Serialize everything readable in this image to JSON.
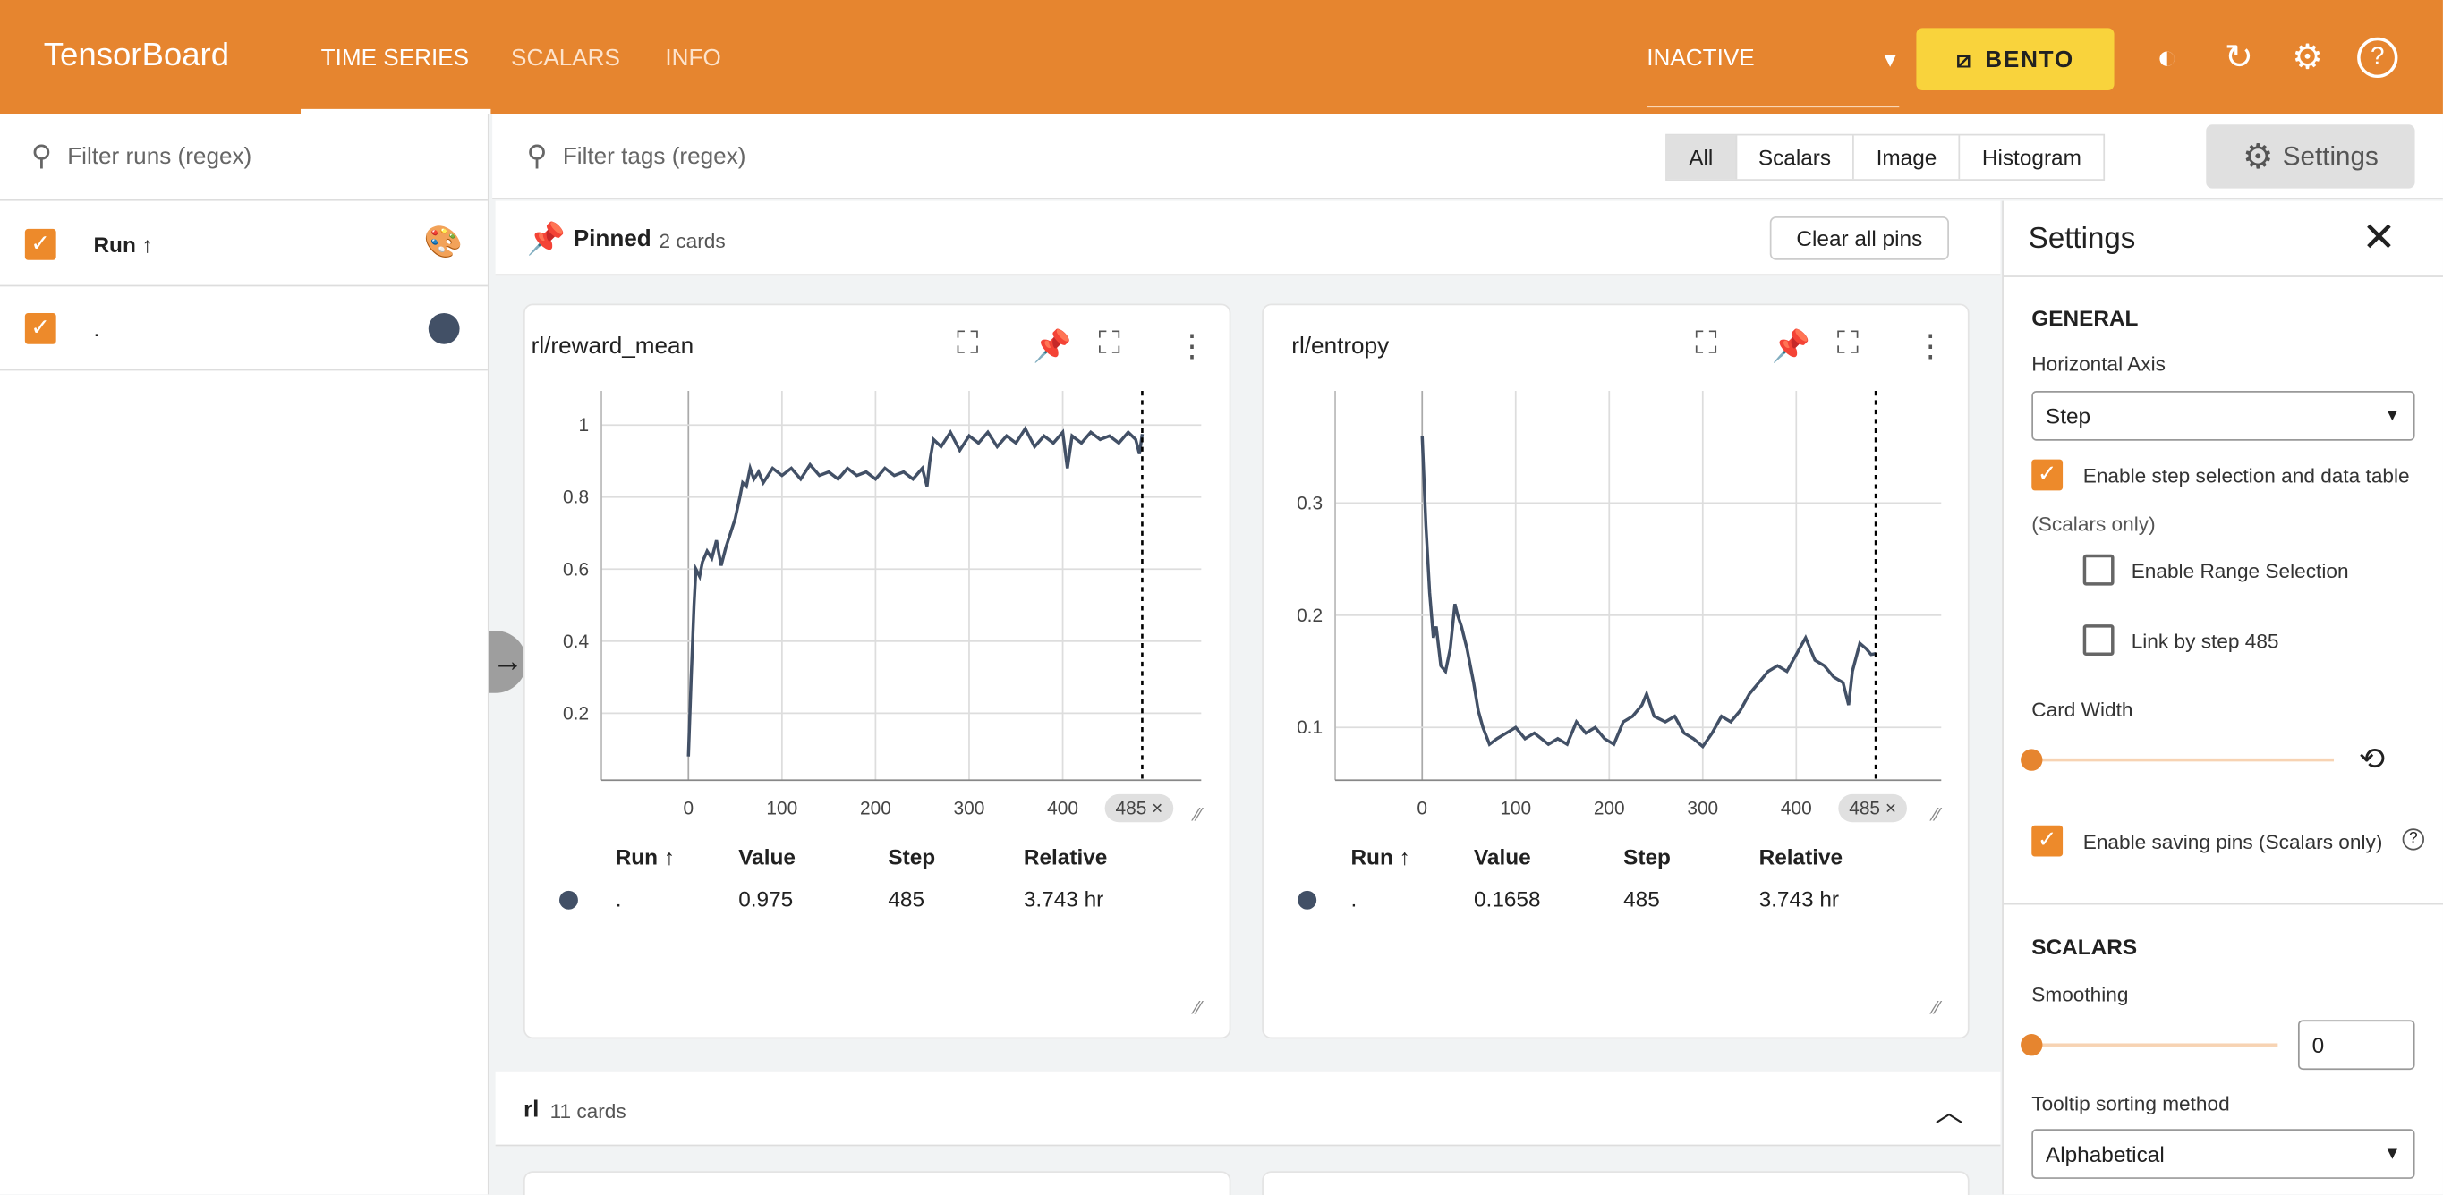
{
  "header": {
    "brand": "TensorBoard",
    "tabs": [
      "TIME SERIES",
      "SCALARS",
      "INFO"
    ],
    "status": "INACTIVE",
    "bento": "BENTO",
    "colors": {
      "bar": "#e6852f",
      "bento": "#f9d33c"
    }
  },
  "runs": {
    "filter_placeholder": "Filter runs (regex)",
    "column": "Run ↑",
    "items": [
      {
        "name": ".",
        "color": "#425066"
      }
    ]
  },
  "toolbar": {
    "filter_placeholder": "Filter tags (regex)",
    "types": [
      "All",
      "Scalars",
      "Image",
      "Histogram"
    ],
    "selected": "All",
    "settings": "Settings"
  },
  "pinned": {
    "title": "Pinned",
    "count": "2 cards",
    "clear": "Clear all pins"
  },
  "group": {
    "title": "rl",
    "count": "11 cards"
  },
  "table_headers": [
    "Run ↑",
    "Value",
    "Step",
    "Relative"
  ],
  "chart_data": [
    {
      "type": "line",
      "title": "rl/reward_mean",
      "xlim": [
        -93,
        548
      ],
      "ylim": [
        0.014,
        1.095
      ],
      "xticks": [
        "0",
        "100",
        "200",
        "300",
        "400"
      ],
      "yticks": [
        "0.2",
        "0.4",
        "0.6",
        "0.8",
        "1"
      ],
      "xt": [
        0,
        100,
        200,
        300,
        400
      ],
      "yt": [
        0.2,
        0.4,
        0.6,
        0.8,
        1
      ],
      "grid": true,
      "step_marker": "485 ×",
      "marker_step": 485,
      "color": "#425066",
      "x": [
        0,
        3,
        6,
        8,
        12,
        15,
        20,
        25,
        30,
        35,
        40,
        45,
        50,
        55,
        58,
        62,
        66,
        70,
        75,
        80,
        90,
        100,
        110,
        120,
        130,
        140,
        150,
        160,
        170,
        180,
        190,
        200,
        210,
        220,
        230,
        240,
        250,
        255,
        258,
        262,
        270,
        280,
        290,
        300,
        310,
        320,
        330,
        340,
        350,
        360,
        370,
        380,
        390,
        400,
        405,
        410,
        420,
        430,
        440,
        450,
        460,
        470,
        478,
        482,
        485
      ],
      "y": [
        0.08,
        0.3,
        0.5,
        0.6,
        0.58,
        0.62,
        0.65,
        0.63,
        0.68,
        0.61,
        0.66,
        0.7,
        0.74,
        0.8,
        0.84,
        0.83,
        0.88,
        0.85,
        0.87,
        0.84,
        0.88,
        0.86,
        0.88,
        0.85,
        0.89,
        0.86,
        0.87,
        0.85,
        0.88,
        0.86,
        0.87,
        0.85,
        0.88,
        0.86,
        0.87,
        0.85,
        0.88,
        0.83,
        0.9,
        0.96,
        0.94,
        0.98,
        0.93,
        0.97,
        0.95,
        0.98,
        0.94,
        0.97,
        0.95,
        0.99,
        0.94,
        0.97,
        0.95,
        0.98,
        0.88,
        0.97,
        0.95,
        0.98,
        0.96,
        0.97,
        0.95,
        0.98,
        0.96,
        0.92,
        0.975
      ],
      "row": {
        "run": ".",
        "value": "0.975",
        "step": "485",
        "relative": "3.743 hr"
      }
    },
    {
      "type": "line",
      "title": "rl/entropy",
      "xlim": [
        -93,
        555
      ],
      "ylim": [
        0.053,
        0.4
      ],
      "xticks": [
        "0",
        "100",
        "200",
        "300",
        "400"
      ],
      "yticks": [
        "0.1",
        "0.2",
        "0.3"
      ],
      "xt": [
        0,
        100,
        200,
        300,
        400
      ],
      "yt": [
        0.1,
        0.2,
        0.3
      ],
      "grid": true,
      "step_marker": "485 ×",
      "marker_step": 485,
      "color": "#425066",
      "x": [
        0,
        4,
        8,
        12,
        15,
        20,
        25,
        30,
        35,
        38,
        42,
        48,
        55,
        60,
        65,
        72,
        80,
        90,
        100,
        110,
        120,
        135,
        145,
        155,
        165,
        175,
        185,
        195,
        205,
        215,
        225,
        235,
        240,
        248,
        260,
        270,
        280,
        290,
        300,
        310,
        320,
        330,
        340,
        350,
        360,
        370,
        380,
        390,
        400,
        410,
        420,
        430,
        440,
        450,
        456,
        460,
        468,
        475,
        480,
        485
      ],
      "y": [
        0.36,
        0.28,
        0.22,
        0.18,
        0.19,
        0.155,
        0.15,
        0.17,
        0.21,
        0.2,
        0.19,
        0.17,
        0.14,
        0.115,
        0.1,
        0.085,
        0.09,
        0.095,
        0.1,
        0.09,
        0.095,
        0.085,
        0.09,
        0.085,
        0.105,
        0.095,
        0.1,
        0.09,
        0.085,
        0.105,
        0.11,
        0.12,
        0.13,
        0.11,
        0.105,
        0.11,
        0.095,
        0.09,
        0.083,
        0.095,
        0.11,
        0.105,
        0.115,
        0.13,
        0.14,
        0.15,
        0.155,
        0.15,
        0.165,
        0.18,
        0.16,
        0.155,
        0.145,
        0.14,
        0.12,
        0.15,
        0.175,
        0.17,
        0.165,
        0.1658
      ],
      "row": {
        "run": ".",
        "value": "0.1658",
        "step": "485",
        "relative": "3.743 hr"
      }
    }
  ],
  "settings": {
    "title": "Settings",
    "general": "GENERAL",
    "haxis_label": "Horizontal Axis",
    "haxis_value": "Step",
    "step_sel": "Enable step selection and data table",
    "scalars_only": "(Scalars only)",
    "range_sel": "Enable Range Selection",
    "link_step": "Link by step 485",
    "card_width": "Card Width",
    "saving_pins": "Enable saving pins (Scalars only)",
    "scalars": "SCALARS",
    "smoothing": "Smoothing",
    "smoothing_value": "0",
    "tooltip_label": "Tooltip sorting method",
    "tooltip_value": "Alphabetical",
    "accent": "#ed8a2b"
  }
}
